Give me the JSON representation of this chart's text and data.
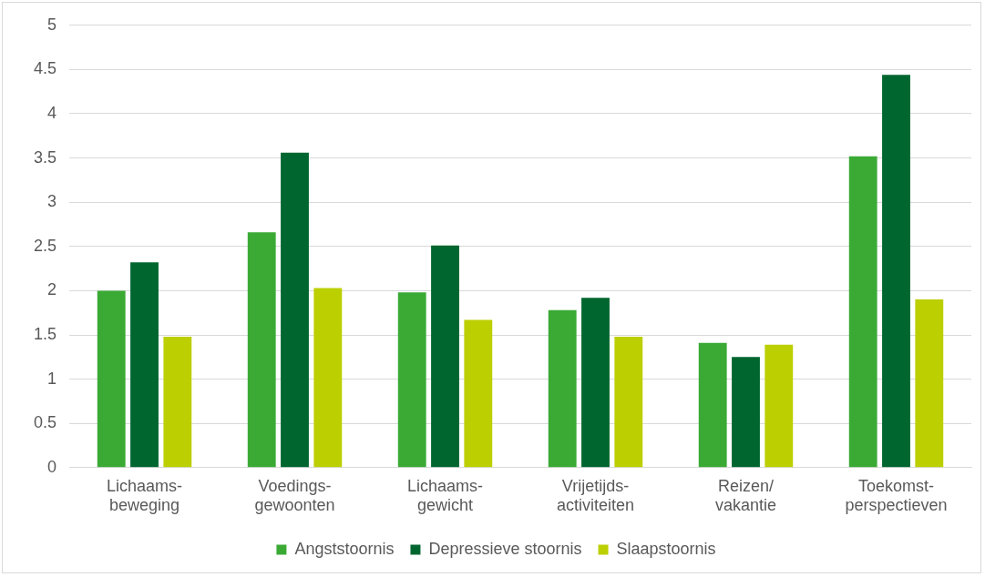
{
  "chart_data": {
    "type": "bar",
    "categories": [
      "Lichaams-\nbeweging",
      "Voedings-\ngewoonten",
      "Lichaams-\ngewicht",
      "Vrijetijds-\nactiviteiten",
      "Reizen/\nvakantie",
      "Toekomst-\nperspectieven"
    ],
    "series": [
      {
        "name": "Angststoornis",
        "color": "#3aaa35",
        "values": [
          2.0,
          2.66,
          1.98,
          1.78,
          1.41,
          3.52
        ]
      },
      {
        "name": "Depressieve stoornis",
        "color": "#00662f",
        "values": [
          2.32,
          3.56,
          2.51,
          1.92,
          1.25,
          4.44
        ]
      },
      {
        "name": "Slaapstoornis",
        "color": "#bccf00",
        "values": [
          1.48,
          2.03,
          1.67,
          1.48,
          1.39,
          1.9
        ]
      }
    ],
    "ylim": [
      0,
      5
    ],
    "yticks": [
      0,
      0.5,
      1,
      1.5,
      2,
      2.5,
      3,
      3.5,
      4,
      4.5,
      5
    ],
    "grid": "y",
    "legend": "bottom"
  }
}
